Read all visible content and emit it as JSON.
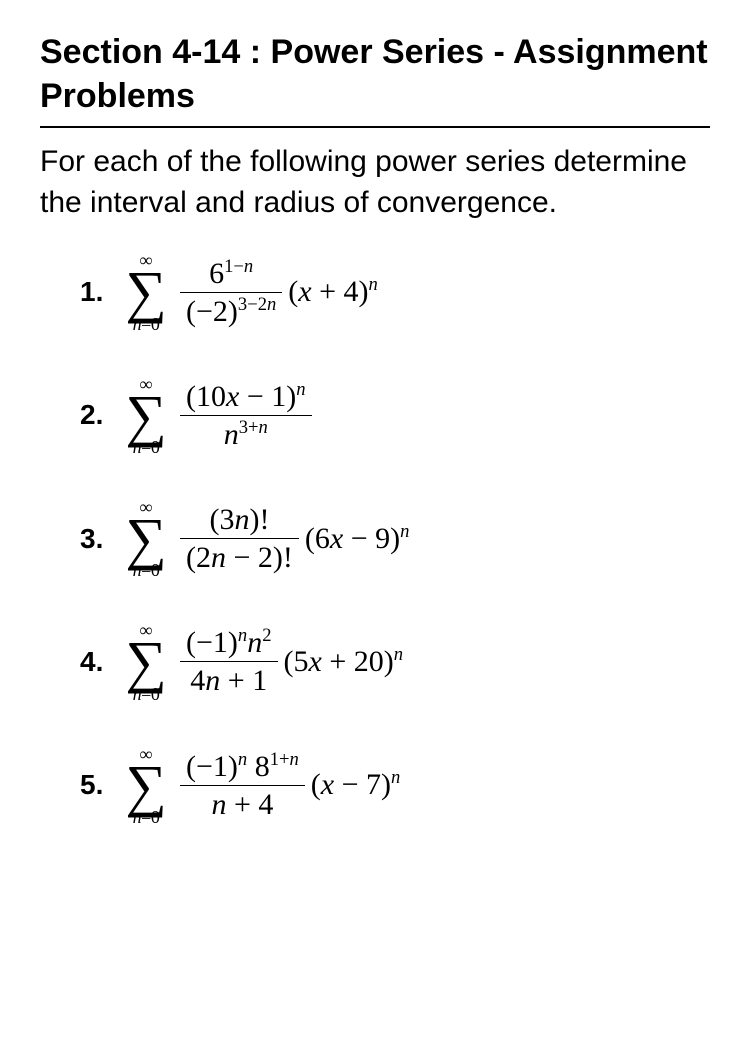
{
  "title": "Section 4-14 : Power Series - Assignment Problems",
  "intro": "For each of the following power series determine the interval and radius of convergence.",
  "sum_upper": "∞",
  "sum_lower_prefix": "n",
  "sum_lower_eq": "=0",
  "problems": [
    {
      "num": "1.",
      "frac_num": "6<sup>1−<span class=\"i\">n</span></sup>",
      "frac_den": "(−2)<sup>3−2<span class=\"i\">n</span></sup>",
      "tail": "(<span class=\"i\">x</span> + 4)<sup><span class=\"i\">n</span></sup>"
    },
    {
      "num": "2.",
      "frac_num": "(10<span class=\"i\">x</span> − 1)<sup><span class=\"i\">n</span></sup>",
      "frac_den": "<span class=\"i\">n</span><sup>3+<span class=\"i\">n</span></sup>",
      "tail": ""
    },
    {
      "num": "3.",
      "frac_num": "(3<span class=\"i\">n</span>)!",
      "frac_den": "(2<span class=\"i\">n</span> − 2)!",
      "tail": "(6<span class=\"i\">x</span> − 9)<sup><span class=\"i\">n</span></sup>"
    },
    {
      "num": "4.",
      "frac_num": "(−1)<sup><span class=\"i\">n</span></sup><span class=\"i\">n</span><sup>2</sup>",
      "frac_den": "4<span class=\"i\">n</span> + 1",
      "tail": "(5<span class=\"i\">x</span> + 20)<sup><span class=\"i\">n</span></sup>"
    },
    {
      "num": "5.",
      "frac_num": "(−1)<sup><span class=\"i\">n</span></sup> 8<sup>1+<span class=\"i\">n</span></sup>",
      "frac_den": "<span class=\"i\">n</span> + 4",
      "tail": "(<span class=\"i\">x</span> − 7)<sup><span class=\"i\">n</span></sup>"
    }
  ]
}
